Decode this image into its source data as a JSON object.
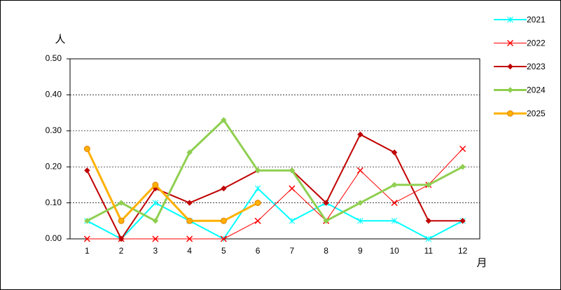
{
  "chart_data": {
    "type": "line",
    "y_label": "人",
    "x_label": "月",
    "categories": [
      "1",
      "2",
      "3",
      "4",
      "5",
      "6",
      "7",
      "8",
      "9",
      "10",
      "11",
      "12"
    ],
    "series": [
      {
        "name": "2021",
        "color": "#00ffff",
        "marker": "asterisk",
        "line_width": 2,
        "values": [
          0.05,
          0,
          0.1,
          0.05,
          0,
          0.14,
          0.05,
          0.1,
          0.05,
          0.05,
          0,
          0.05
        ]
      },
      {
        "name": "2022",
        "color": "#ff0000",
        "marker": "x",
        "line_width": 1,
        "values": [
          0,
          0,
          0,
          0,
          0,
          0.05,
          0.14,
          0.05,
          0.19,
          0.1,
          0.15,
          0.25
        ]
      },
      {
        "name": "2023",
        "color": "#c00000",
        "marker": "diamond",
        "line_width": 2,
        "values": [
          0.19,
          0,
          0.14,
          0.1,
          0.14,
          0.19,
          0.19,
          0.1,
          0.29,
          0.24,
          0.05,
          0.05
        ]
      },
      {
        "name": "2024",
        "color": "#8fcf50",
        "marker": "diamond",
        "line_width": 3,
        "values": [
          0.05,
          0.1,
          0.05,
          0.24,
          0.33,
          0.19,
          0.19,
          0.05,
          0.1,
          0.15,
          0.15,
          0.2
        ]
      },
      {
        "name": "2025",
        "color": "#ffb000",
        "marker": "circle",
        "line_width": 3,
        "values": [
          0.25,
          0.05,
          0.15,
          0.05,
          0.05,
          0.1,
          null,
          null,
          null,
          null,
          null,
          null
        ]
      }
    ],
    "ylim": [
      0,
      0.5
    ],
    "yticks": [
      {
        "value": 0,
        "label": "0.00"
      },
      {
        "value": 0.1,
        "label": "0.10"
      },
      {
        "value": 0.2,
        "label": "0.20"
      },
      {
        "value": 0.3,
        "label": "0.30"
      },
      {
        "value": 0.4,
        "label": "0.40"
      },
      {
        "value": 0.5,
        "label": "0.50"
      }
    ],
    "grid": true,
    "legend": "right"
  }
}
